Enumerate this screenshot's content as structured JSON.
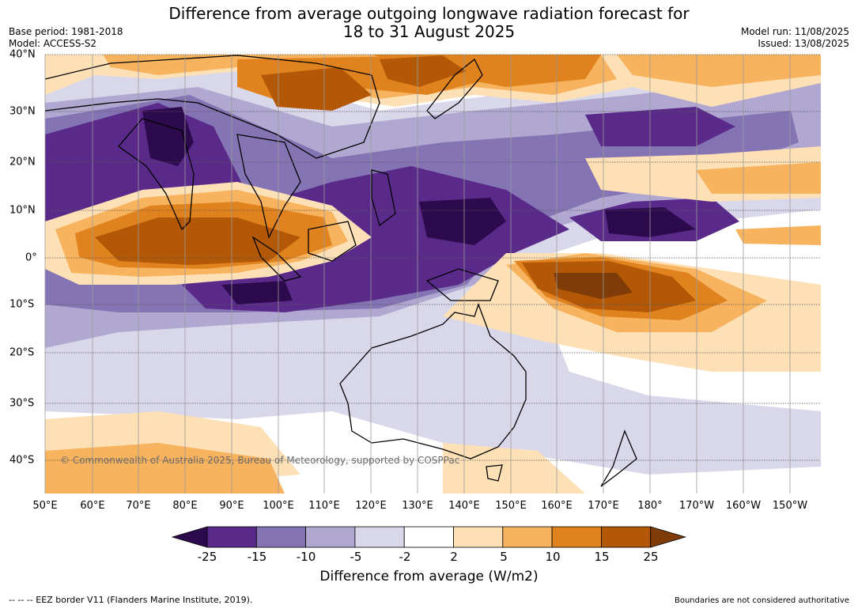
{
  "title": {
    "line1": "Difference from average outgoing longwave radiation forecast for",
    "line2": "18 to 31 August 2025"
  },
  "meta": {
    "base_period": "Base period: 1981-2018",
    "model": "Model: ACCESS-S2",
    "model_run": "Model run: 11/08/2025",
    "issued": "Issued: 13/08/2025"
  },
  "map": {
    "lon_labels": [
      "50°E",
      "60°E",
      "70°E",
      "80°E",
      "90°E",
      "100°E",
      "110°E",
      "120°E",
      "130°E",
      "140°E",
      "150°E",
      "160°E",
      "170°E",
      "180°",
      "170°W",
      "160°W",
      "150°W"
    ],
    "lat_labels": [
      "40°N",
      "30°N",
      "20°N",
      "10°N",
      "0°",
      "10°S",
      "20°S",
      "30°S",
      "40°S"
    ],
    "copyright": "© Commonwealth of Australia 2025, Bureau of Meteorology, supported by COSPPac"
  },
  "colorbar": {
    "ticks": [
      "-25",
      "-15",
      "-10",
      "-5",
      "-2",
      "2",
      "5",
      "10",
      "15",
      "25"
    ],
    "colors": [
      "#2d0a4e",
      "#5a2a8a",
      "#8574b3",
      "#b0a8d1",
      "#d9d8ea",
      "#ffffff",
      "#fde0b6",
      "#f8b35f",
      "#e0831e",
      "#b35806",
      "#7f3b08"
    ],
    "label": "Difference from average (W/m2)"
  },
  "footer": {
    "eez": "--  --  -- EEZ border V11 (Flanders Marine Institute, 2019).",
    "disclaimer": "Boundaries are not considered authoritative"
  }
}
